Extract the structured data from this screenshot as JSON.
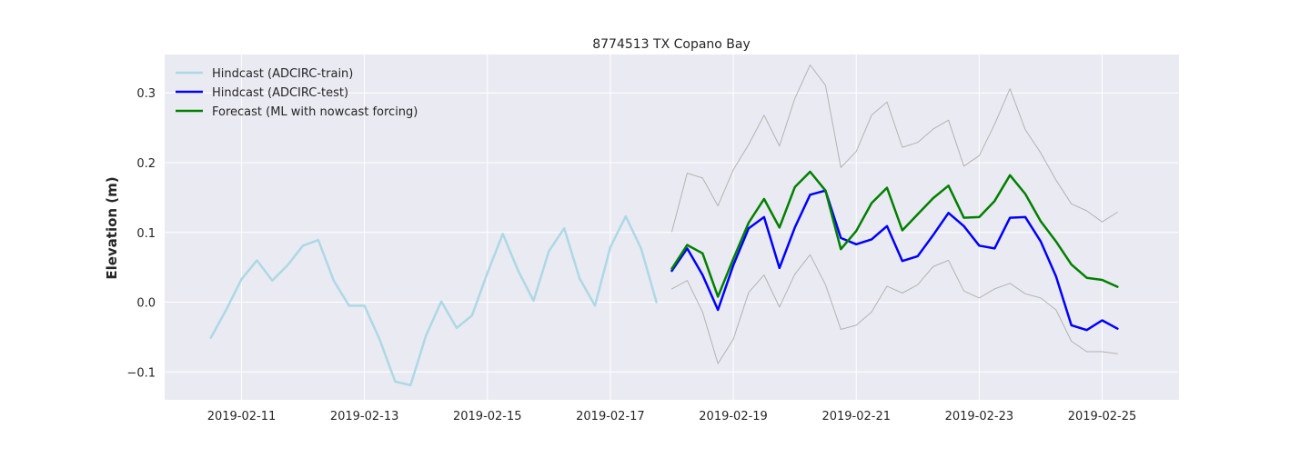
{
  "chart_data": {
    "type": "line",
    "title": "8774513 TX Copano Bay",
    "xlabel": "",
    "ylabel": "Elevation (m)",
    "xlim": [
      "2019-02-09T18:00",
      "2019-02-26T06:00"
    ],
    "ylim": [
      -0.14,
      0.355
    ],
    "x_ticks": [
      "2019-02-11",
      "2019-02-13",
      "2019-02-15",
      "2019-02-17",
      "2019-02-19",
      "2019-02-21",
      "2019-02-23",
      "2019-02-25"
    ],
    "y_ticks": [
      -0.1,
      0.0,
      0.1,
      0.2,
      0.3
    ],
    "y_tick_labels": [
      "−0.1",
      "0.0",
      "0.1",
      "0.2",
      "0.3"
    ],
    "grid": true,
    "legend_position": "top-left",
    "series": [
      {
        "name": "Hindcast (ADCIRC-train)",
        "color": "#add8e6",
        "role": "train",
        "x": [
          "2019-02-10T12:00",
          "2019-02-10T18:00",
          "2019-02-11T00:00",
          "2019-02-11T06:00",
          "2019-02-11T12:00",
          "2019-02-11T18:00",
          "2019-02-12T00:00",
          "2019-02-12T06:00",
          "2019-02-12T12:00",
          "2019-02-12T18:00",
          "2019-02-13T00:00",
          "2019-02-13T06:00",
          "2019-02-13T12:00",
          "2019-02-13T18:00",
          "2019-02-14T00:00",
          "2019-02-14T06:00",
          "2019-02-14T12:00",
          "2019-02-14T18:00",
          "2019-02-15T00:00",
          "2019-02-15T06:00",
          "2019-02-15T12:00",
          "2019-02-15T18:00",
          "2019-02-16T00:00",
          "2019-02-16T06:00",
          "2019-02-16T12:00",
          "2019-02-16T18:00",
          "2019-02-17T00:00",
          "2019-02-17T06:00",
          "2019-02-17T12:00",
          "2019-02-17T18:00"
        ],
        "values": [
          -0.051,
          -0.011,
          0.033,
          0.06,
          0.031,
          0.053,
          0.081,
          0.089,
          0.031,
          -0.005,
          -0.005,
          -0.054,
          -0.114,
          -0.119,
          -0.048,
          0.001,
          -0.037,
          -0.019,
          0.042,
          0.098,
          0.045,
          0.002,
          0.073,
          0.106,
          0.034,
          -0.005,
          0.079,
          0.123,
          0.077,
          0.0
        ]
      },
      {
        "name": "Hindcast (ADCIRC-test)",
        "color": "#0000ff",
        "role": "test",
        "x": [
          "2019-02-18T00:00",
          "2019-02-18T06:00",
          "2019-02-18T12:00",
          "2019-02-18T18:00",
          "2019-02-19T00:00",
          "2019-02-19T06:00",
          "2019-02-19T12:00",
          "2019-02-19T18:00",
          "2019-02-20T00:00",
          "2019-02-20T06:00",
          "2019-02-20T12:00",
          "2019-02-20T18:00",
          "2019-02-21T00:00",
          "2019-02-21T06:00",
          "2019-02-21T12:00",
          "2019-02-21T18:00",
          "2019-02-22T00:00",
          "2019-02-22T06:00",
          "2019-02-22T12:00",
          "2019-02-22T18:00",
          "2019-02-23T00:00",
          "2019-02-23T06:00",
          "2019-02-23T12:00",
          "2019-02-23T18:00",
          "2019-02-24T00:00",
          "2019-02-24T06:00",
          "2019-02-24T12:00",
          "2019-02-24T18:00",
          "2019-02-25T00:00",
          "2019-02-25T06:00"
        ],
        "values": [
          0.045,
          0.077,
          0.039,
          -0.011,
          0.053,
          0.106,
          0.122,
          0.049,
          0.107,
          0.154,
          0.16,
          0.092,
          0.083,
          0.09,
          0.109,
          0.059,
          0.066,
          0.096,
          0.128,
          0.109,
          0.081,
          0.077,
          0.121,
          0.122,
          0.087,
          0.037,
          -0.033,
          -0.04,
          -0.026,
          -0.038
        ]
      },
      {
        "name": "Forecast (ML with nowcast forcing)",
        "color": "#008000",
        "role": "forecast",
        "x": [
          "2019-02-18T00:00",
          "2019-02-18T06:00",
          "2019-02-18T12:00",
          "2019-02-18T18:00",
          "2019-02-19T00:00",
          "2019-02-19T06:00",
          "2019-02-19T12:00",
          "2019-02-19T18:00",
          "2019-02-20T00:00",
          "2019-02-20T06:00",
          "2019-02-20T12:00",
          "2019-02-20T18:00",
          "2019-02-21T00:00",
          "2019-02-21T06:00",
          "2019-02-21T12:00",
          "2019-02-21T18:00",
          "2019-02-22T00:00",
          "2019-02-22T06:00",
          "2019-02-22T12:00",
          "2019-02-22T18:00",
          "2019-02-23T00:00",
          "2019-02-23T06:00",
          "2019-02-23T12:00",
          "2019-02-23T18:00",
          "2019-02-24T00:00",
          "2019-02-24T06:00",
          "2019-02-24T12:00",
          "2019-02-24T18:00",
          "2019-02-25T00:00",
          "2019-02-25T06:00"
        ],
        "values": [
          0.048,
          0.082,
          0.07,
          0.008,
          0.062,
          0.114,
          0.148,
          0.107,
          0.165,
          0.187,
          0.16,
          0.076,
          0.102,
          0.142,
          0.164,
          0.103,
          0.126,
          0.149,
          0.167,
          0.121,
          0.122,
          0.145,
          0.182,
          0.155,
          0.116,
          0.087,
          0.054,
          0.035,
          0.032,
          0.022
        ]
      },
      {
        "color": "#b3b3b3",
        "role": "bound",
        "x": [
          "2019-02-18T00:00",
          "2019-02-18T06:00",
          "2019-02-18T12:00",
          "2019-02-18T18:00",
          "2019-02-19T00:00",
          "2019-02-19T06:00",
          "2019-02-19T12:00",
          "2019-02-19T18:00",
          "2019-02-20T00:00",
          "2019-02-20T06:00",
          "2019-02-20T12:00",
          "2019-02-20T18:00",
          "2019-02-21T00:00",
          "2019-02-21T06:00",
          "2019-02-21T12:00",
          "2019-02-21T18:00",
          "2019-02-22T00:00",
          "2019-02-22T06:00",
          "2019-02-22T12:00",
          "2019-02-22T18:00",
          "2019-02-23T00:00",
          "2019-02-23T06:00",
          "2019-02-23T12:00",
          "2019-02-23T18:00",
          "2019-02-24T00:00",
          "2019-02-24T06:00",
          "2019-02-24T12:00",
          "2019-02-24T18:00",
          "2019-02-25T00:00",
          "2019-02-25T06:00"
        ],
        "values": [
          0.101,
          0.185,
          0.178,
          0.138,
          0.19,
          0.226,
          0.268,
          0.224,
          0.292,
          0.34,
          0.311,
          0.193,
          0.216,
          0.268,
          0.287,
          0.222,
          0.229,
          0.248,
          0.261,
          0.195,
          0.21,
          0.255,
          0.306,
          0.247,
          0.214,
          0.175,
          0.141,
          0.131,
          0.115,
          0.129
        ]
      },
      {
        "color": "#b3b3b3",
        "role": "bound",
        "x": [
          "2019-02-18T00:00",
          "2019-02-18T06:00",
          "2019-02-18T12:00",
          "2019-02-18T18:00",
          "2019-02-19T00:00",
          "2019-02-19T06:00",
          "2019-02-19T12:00",
          "2019-02-19T18:00",
          "2019-02-20T00:00",
          "2019-02-20T06:00",
          "2019-02-20T12:00",
          "2019-02-20T18:00",
          "2019-02-21T00:00",
          "2019-02-21T06:00",
          "2019-02-21T12:00",
          "2019-02-21T18:00",
          "2019-02-22T00:00",
          "2019-02-22T06:00",
          "2019-02-22T12:00",
          "2019-02-22T18:00",
          "2019-02-23T00:00",
          "2019-02-23T06:00",
          "2019-02-23T12:00",
          "2019-02-23T18:00",
          "2019-02-24T00:00",
          "2019-02-24T06:00",
          "2019-02-24T12:00",
          "2019-02-24T18:00",
          "2019-02-25T00:00",
          "2019-02-25T06:00"
        ],
        "values": [
          0.019,
          0.031,
          -0.014,
          -0.088,
          -0.053,
          0.014,
          0.039,
          -0.007,
          0.04,
          0.068,
          0.025,
          -0.039,
          -0.033,
          -0.014,
          0.023,
          0.013,
          0.025,
          0.051,
          0.06,
          0.016,
          0.006,
          0.019,
          0.027,
          0.012,
          0.006,
          -0.011,
          -0.056,
          -0.071,
          -0.071,
          -0.074
        ]
      }
    ]
  }
}
